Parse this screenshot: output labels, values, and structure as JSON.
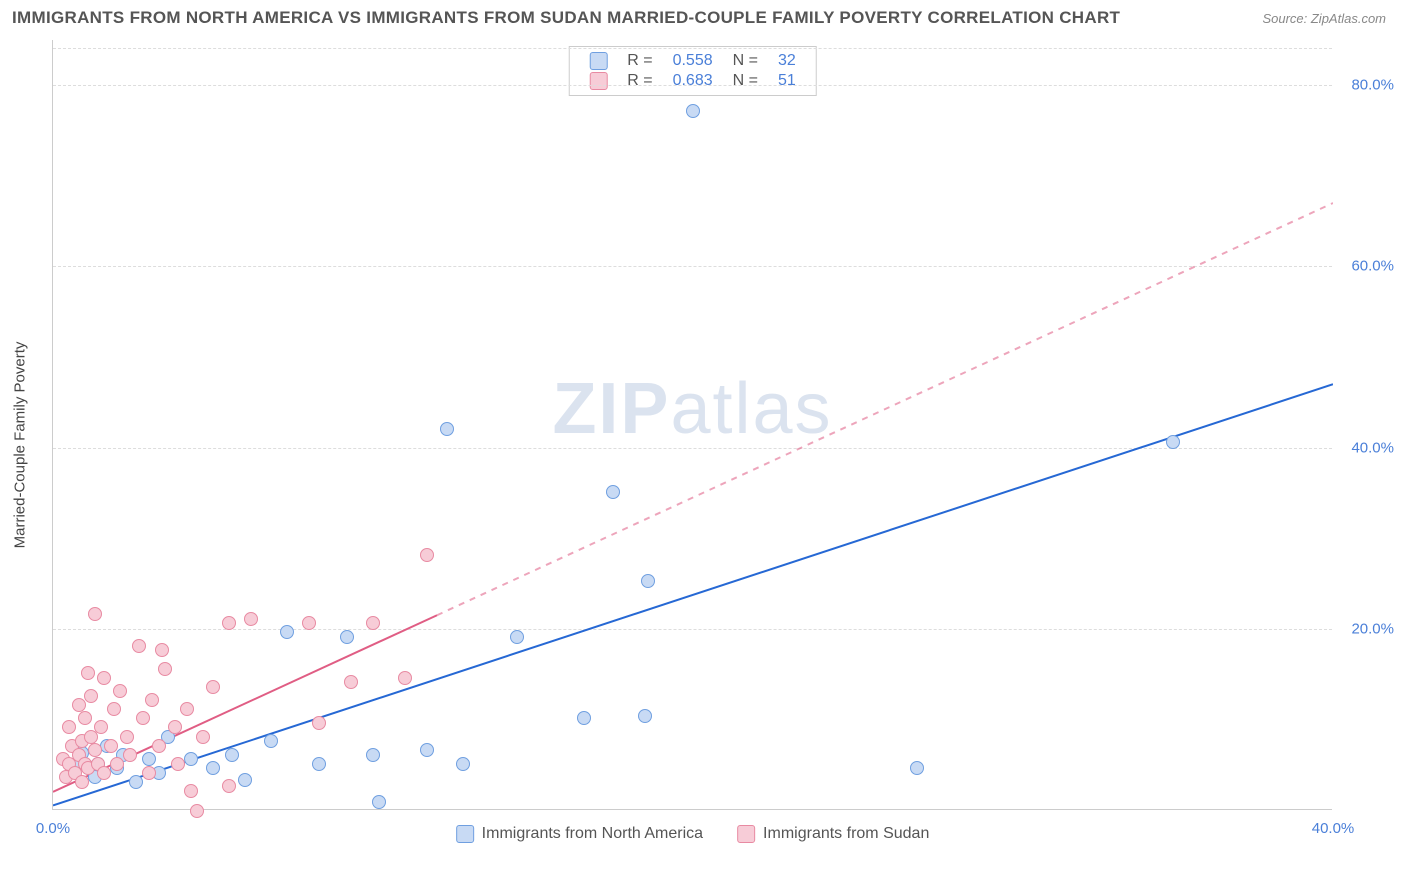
{
  "title": "IMMIGRANTS FROM NORTH AMERICA VS IMMIGRANTS FROM SUDAN MARRIED-COUPLE FAMILY POVERTY CORRELATION CHART",
  "source": "Source: ZipAtlas.com",
  "ylabel": "Married-Couple Family Poverty",
  "watermark_a": "ZIP",
  "watermark_b": "atlas",
  "chart": {
    "type": "scatter",
    "xlim": [
      0,
      40
    ],
    "ylim": [
      0,
      85
    ],
    "xticks": [
      0,
      40
    ],
    "yticks": [
      20,
      40,
      60,
      80
    ],
    "ytick_fmt": "%",
    "grid_color": "#dddddd",
    "background_color": "#ffffff",
    "axis_color": "#cccccc",
    "tick_color": "#4a7fd8",
    "label_color": "#444444",
    "title_color": "#555555",
    "title_fontsize": 17,
    "label_fontsize": 15,
    "tick_fontsize": 15,
    "series": [
      {
        "name": "Immigrants from North America",
        "color_fill": "#c8daf4",
        "color_stroke": "#6f9fe0",
        "marker_radius": 7,
        "trend_color": "#2668d4",
        "trend_width": 2,
        "trend_dash_after_x": 40,
        "r_label": "R =",
        "r_value": "0.558",
        "n_label": "N =",
        "n_value": "32",
        "trend": {
          "x1": 0,
          "y1": 0.5,
          "x2": 40,
          "y2": 47
        },
        "points": [
          [
            0.7,
            4.8
          ],
          [
            0.9,
            6.2
          ],
          [
            1.3,
            3.5
          ],
          [
            1.4,
            5.0
          ],
          [
            1.7,
            7.0
          ],
          [
            2.0,
            4.5
          ],
          [
            2.2,
            6.0
          ],
          [
            2.6,
            3.0
          ],
          [
            3.0,
            5.5
          ],
          [
            3.3,
            4.0
          ],
          [
            3.6,
            8.0
          ],
          [
            4.3,
            5.5
          ],
          [
            5.0,
            4.5
          ],
          [
            5.6,
            6.0
          ],
          [
            6.0,
            3.2
          ],
          [
            6.8,
            7.5
          ],
          [
            7.3,
            19.5
          ],
          [
            8.3,
            5.0
          ],
          [
            9.2,
            19.0
          ],
          [
            10.0,
            6.0
          ],
          [
            10.2,
            0.8
          ],
          [
            11.7,
            6.5
          ],
          [
            12.3,
            42.0
          ],
          [
            12.8,
            5.0
          ],
          [
            14.5,
            19.0
          ],
          [
            16.6,
            10.0
          ],
          [
            17.5,
            35.0
          ],
          [
            18.5,
            10.3
          ],
          [
            18.6,
            25.2
          ],
          [
            20.0,
            77.0
          ],
          [
            27.0,
            4.5
          ],
          [
            35.0,
            40.5
          ]
        ]
      },
      {
        "name": "Immigrants from Sudan",
        "color_fill": "#f7ccd7",
        "color_stroke": "#e88aa2",
        "marker_radius": 7,
        "trend_color": "#e05d84",
        "trend_width": 2,
        "trend_dash_after_x": 12,
        "r_label": "R =",
        "r_value": "0.683",
        "n_label": "N =",
        "n_value": "51",
        "trend": {
          "x1": 0,
          "y1": 2.0,
          "x2": 40,
          "y2": 67
        },
        "points": [
          [
            0.3,
            5.5
          ],
          [
            0.4,
            3.5
          ],
          [
            0.5,
            9.0
          ],
          [
            0.5,
            5.0
          ],
          [
            0.6,
            7.0
          ],
          [
            0.7,
            4.0
          ],
          [
            0.8,
            11.5
          ],
          [
            0.8,
            6.0
          ],
          [
            0.9,
            7.5
          ],
          [
            0.9,
            3.0
          ],
          [
            1.0,
            10.0
          ],
          [
            1.0,
            5.0
          ],
          [
            1.1,
            15.0
          ],
          [
            1.1,
            4.5
          ],
          [
            1.2,
            8.0
          ],
          [
            1.2,
            12.5
          ],
          [
            1.3,
            6.5
          ],
          [
            1.3,
            21.5
          ],
          [
            1.4,
            5.0
          ],
          [
            1.5,
            9.0
          ],
          [
            1.6,
            14.5
          ],
          [
            1.6,
            4.0
          ],
          [
            1.8,
            7.0
          ],
          [
            1.9,
            11.0
          ],
          [
            2.0,
            5.0
          ],
          [
            2.1,
            13.0
          ],
          [
            2.3,
            8.0
          ],
          [
            2.4,
            6.0
          ],
          [
            2.7,
            18.0
          ],
          [
            2.8,
            10.0
          ],
          [
            3.0,
            4.0
          ],
          [
            3.1,
            12.0
          ],
          [
            3.3,
            7.0
          ],
          [
            3.4,
            17.5
          ],
          [
            3.5,
            15.5
          ],
          [
            3.8,
            9.0
          ],
          [
            3.9,
            5.0
          ],
          [
            4.2,
            11.0
          ],
          [
            4.3,
            2.0
          ],
          [
            4.5,
            -0.2
          ],
          [
            4.7,
            8.0
          ],
          [
            5.0,
            13.5
          ],
          [
            5.5,
            2.5
          ],
          [
            5.5,
            20.5
          ],
          [
            6.2,
            21.0
          ],
          [
            8.0,
            20.5
          ],
          [
            8.3,
            9.5
          ],
          [
            9.3,
            14.0
          ],
          [
            10.0,
            20.5
          ],
          [
            11.0,
            14.5
          ],
          [
            11.7,
            28.0
          ]
        ]
      }
    ]
  },
  "legend_bottom": {
    "items": [
      {
        "label": "Immigrants from North America",
        "fill": "#c8daf4",
        "stroke": "#6f9fe0"
      },
      {
        "label": "Immigrants from Sudan",
        "fill": "#f7ccd7",
        "stroke": "#e88aa2"
      }
    ]
  }
}
